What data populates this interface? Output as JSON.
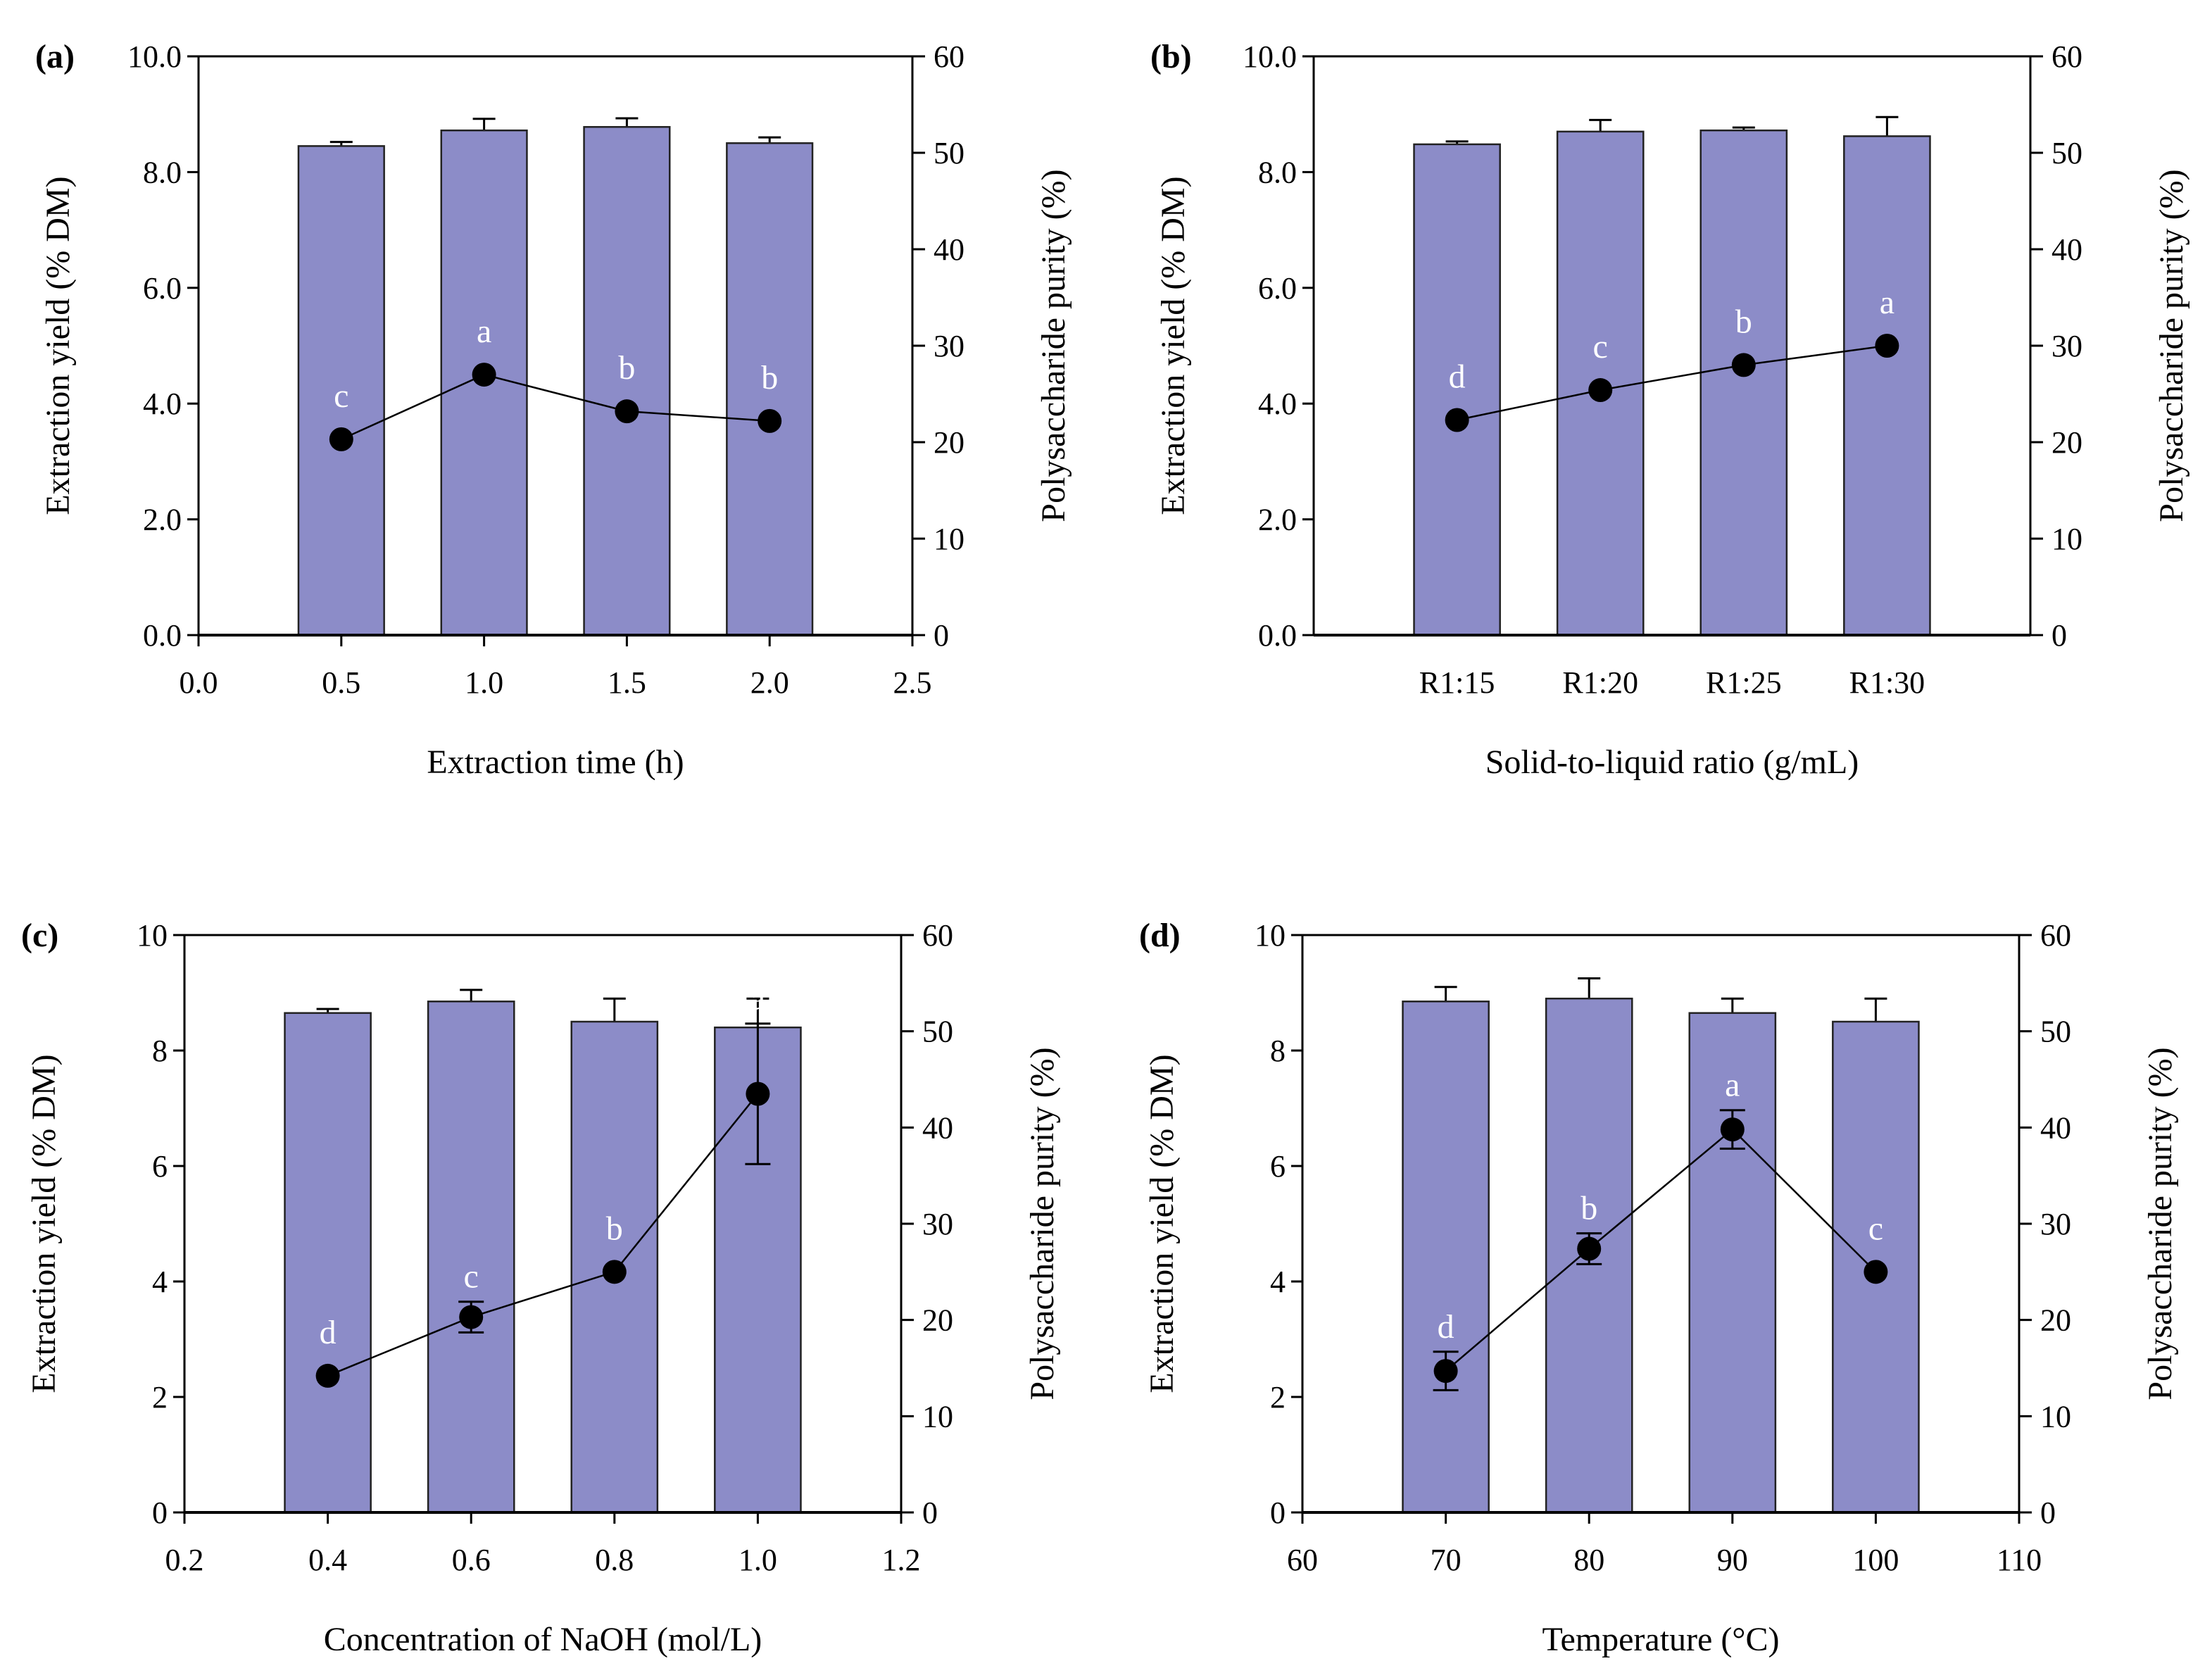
{
  "colors": {
    "bar": "#8c8cc8",
    "bar_edge": "#222222",
    "line": "#000000",
    "letter": "#ffffff"
  },
  "chart_data": [
    {
      "panel": "(a)",
      "type": "bar+line",
      "xlabel": "Extraction time (h)",
      "ylabel": "Extraction yield (% DM)",
      "y2label": "Polysaccharide purity (%)",
      "x": [
        0.5,
        1.0,
        1.5,
        2.0
      ],
      "xlim": [
        0,
        2.5
      ],
      "xticks": [
        "0.0",
        "0.5",
        "1.0",
        "1.5",
        "2.0",
        "2.5"
      ],
      "ylim": [
        0,
        10
      ],
      "yticks": [
        "0.0",
        "2.0",
        "4.0",
        "6.0",
        "8.0",
        "10.0"
      ],
      "y2lim": [
        0,
        60
      ],
      "y2ticks": [
        "0",
        "10",
        "20",
        "30",
        "40",
        "50",
        "60"
      ],
      "yield": [
        8.45,
        8.72,
        8.78,
        8.5
      ],
      "yield_err": [
        0.07,
        0.2,
        0.15,
        0.1
      ],
      "purity": [
        20.3,
        27.0,
        23.2,
        22.2
      ],
      "purity_err": [
        0,
        0,
        0,
        0
      ],
      "letters": [
        "c",
        "a",
        "b",
        "b"
      ]
    },
    {
      "panel": "(b)",
      "type": "bar+line",
      "xlabel": "Solid-to-liquid ratio (g/mL)",
      "ylabel": "Extraction yield (% DM)",
      "y2label": "Polysaccharide purity (%)",
      "x": [
        1,
        2,
        3,
        4
      ],
      "xlim": [
        0,
        5
      ],
      "categories": [
        "R1:15",
        "R1:20",
        "R1:25",
        "R1:30"
      ],
      "ylim": [
        0,
        10
      ],
      "yticks": [
        "0.0",
        "2.0",
        "4.0",
        "6.0",
        "8.0",
        "10.0"
      ],
      "y2lim": [
        0,
        60
      ],
      "y2ticks": [
        "0",
        "10",
        "20",
        "30",
        "40",
        "50",
        "60"
      ],
      "yield": [
        8.48,
        8.7,
        8.72,
        8.62
      ],
      "yield_err": [
        0.05,
        0.2,
        0.05,
        0.33
      ],
      "purity": [
        22.3,
        25.4,
        28.0,
        30.0
      ],
      "purity_err": [
        0,
        0,
        0,
        0
      ],
      "letters": [
        "d",
        "c",
        "b",
        "a"
      ]
    },
    {
      "panel": "(c)",
      "type": "bar+line",
      "xlabel": "Concentration of NaOH (mol/L)",
      "ylabel": "Extraction yield (% DM)",
      "y2label": "Polysaccharide purity (%)",
      "x": [
        0.4,
        0.6,
        0.8,
        1.0
      ],
      "xlim": [
        0.2,
        1.2
      ],
      "xticks": [
        "0.2",
        "0.4",
        "0.6",
        "0.8",
        "1.0",
        "1.2"
      ],
      "ylim": [
        0,
        10
      ],
      "yticks": [
        "0",
        "2",
        "4",
        "6",
        "8",
        "10"
      ],
      "y2lim": [
        0,
        60
      ],
      "y2ticks": [
        "0",
        "10",
        "20",
        "30",
        "40",
        "50",
        "60"
      ],
      "yield": [
        8.65,
        8.85,
        8.5,
        8.4
      ],
      "yield_err": [
        0.07,
        0.2,
        0.4,
        0.5
      ],
      "purity": [
        14.2,
        20.3,
        25.0,
        43.5
      ],
      "purity_err": [
        0,
        1.6,
        0,
        7.3
      ],
      "letters": [
        "d",
        "c",
        "b",
        "a"
      ]
    },
    {
      "panel": "(d)",
      "type": "bar+line",
      "xlabel": "Temperature (°C)",
      "ylabel": "Extraction yield (% DM)",
      "y2label": "Polysaccharide purity (%)",
      "x": [
        70,
        80,
        90,
        100
      ],
      "xlim": [
        60,
        110
      ],
      "xticks": [
        "60",
        "70",
        "80",
        "90",
        "100",
        "110"
      ],
      "ylim": [
        0,
        10
      ],
      "yticks": [
        "0",
        "2",
        "4",
        "6",
        "8",
        "10"
      ],
      "y2lim": [
        0,
        60
      ],
      "y2ticks": [
        "0",
        "10",
        "20",
        "30",
        "40",
        "50",
        "60"
      ],
      "yield": [
        8.85,
        8.9,
        8.65,
        8.5
      ],
      "yield_err": [
        0.25,
        0.35,
        0.25,
        0.4
      ],
      "purity": [
        14.7,
        27.4,
        39.8,
        25.0
      ],
      "purity_err": [
        2.0,
        1.6,
        2.0,
        0
      ],
      "letters": [
        "d",
        "b",
        "a",
        "c"
      ]
    }
  ]
}
